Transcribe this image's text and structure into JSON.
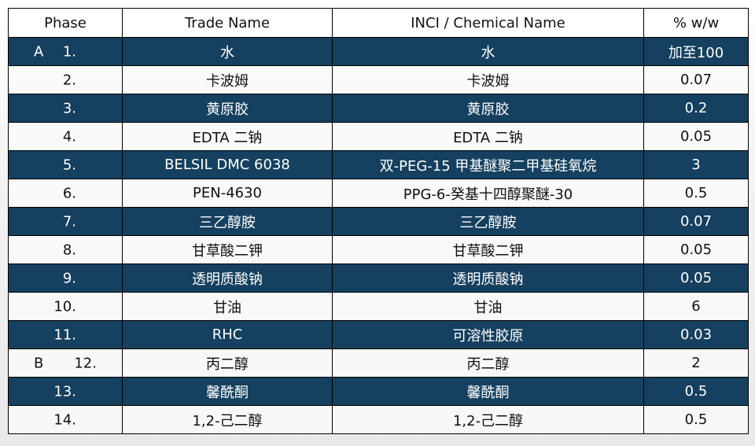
{
  "headers": {
    "phase": "Phase",
    "trade": "Trade Name",
    "inci": "INCI / Chemical Name",
    "ww": "% w/w"
  },
  "colors": {
    "dark_row": "#15405f",
    "light_row": "#f5f5f5"
  },
  "rows": [
    {
      "phase": "A",
      "num": "1.",
      "trade": "水",
      "inci": "水",
      "ww": "加至100"
    },
    {
      "phase": "",
      "num": "2.",
      "trade": "卡波姆",
      "inci": "卡波姆",
      "ww": "0.07"
    },
    {
      "phase": "",
      "num": "3.",
      "trade": "黄原胶",
      "inci": "黄原胶",
      "ww": "0.2"
    },
    {
      "phase": "",
      "num": "4.",
      "trade": "EDTA 二钠",
      "inci": "EDTA 二钠",
      "ww": "0.05"
    },
    {
      "phase": "",
      "num": "5.",
      "trade": "BELSIL DMC 6038",
      "inci": "双-PEG-15 甲基醚聚二甲基硅氧烷",
      "ww": "3"
    },
    {
      "phase": "",
      "num": "6.",
      "trade": "PEN-4630",
      "inci": "PPG-6-癸基十四醇聚醚-30",
      "ww": "0.5"
    },
    {
      "phase": "",
      "num": "7.",
      "trade": "三乙醇胺",
      "inci": "三乙醇胺",
      "ww": "0.07"
    },
    {
      "phase": "",
      "num": "8.",
      "trade": "甘草酸二钾",
      "inci": "甘草酸二钾",
      "ww": "0.05"
    },
    {
      "phase": "",
      "num": "9.",
      "trade": "透明质酸钠",
      "inci": "透明质酸钠",
      "ww": "0.05"
    },
    {
      "phase": "",
      "num": "10.",
      "trade": "甘油",
      "inci": "甘油",
      "ww": "6"
    },
    {
      "phase": "",
      "num": "11.",
      "trade": "RHC",
      "inci": "可溶性胶原",
      "ww": "0.03"
    },
    {
      "phase": "B",
      "num": "12.",
      "trade": "丙二醇",
      "inci": "丙二醇",
      "ww": "2"
    },
    {
      "phase": "",
      "num": "13.",
      "trade": "馨酰酮",
      "inci": "馨酰酮",
      "ww": "0.5"
    },
    {
      "phase": "",
      "num": "14.",
      "trade": "1,2-己二醇",
      "inci": "1,2-己二醇",
      "ww": "0.5"
    }
  ]
}
